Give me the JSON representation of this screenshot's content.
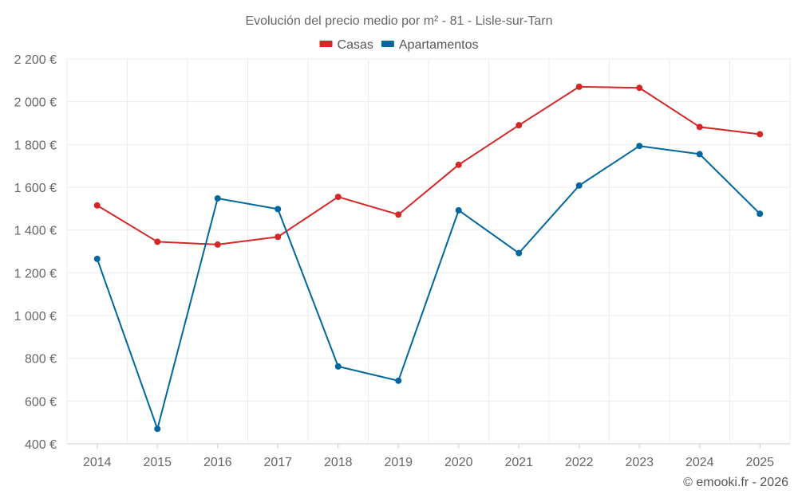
{
  "chart_data": {
    "type": "line",
    "title": "Evolución del precio medio por m² - 81 - Lisle-sur-Tarn",
    "categories": [
      "2014",
      "2015",
      "2016",
      "2017",
      "2018",
      "2019",
      "2020",
      "2021",
      "2022",
      "2023",
      "2024",
      "2025"
    ],
    "series": [
      {
        "name": "Casas",
        "color": "#d62728",
        "values": [
          1515,
          1345,
          1332,
          1368,
          1555,
          1472,
          1705,
          1890,
          2070,
          2065,
          1882,
          1848
        ]
      },
      {
        "name": "Apartamentos",
        "color": "#00679f",
        "values": [
          1265,
          470,
          1548,
          1498,
          762,
          695,
          1492,
          1292,
          1608,
          1793,
          1755,
          1476
        ]
      }
    ],
    "ylim": [
      400,
      2200
    ],
    "yticks": [
      400,
      600,
      800,
      1000,
      1200,
      1400,
      1600,
      1800,
      2000,
      2200
    ],
    "ytick_labels": [
      "400 €",
      "600 €",
      "800 €",
      "1 000 €",
      "1 200 €",
      "1 400 €",
      "1 600 €",
      "1 800 €",
      "2 000 €",
      "2 200 €"
    ],
    "grid": true,
    "legend_position": "top-center"
  },
  "credit": "© emooki.fr - 2026"
}
